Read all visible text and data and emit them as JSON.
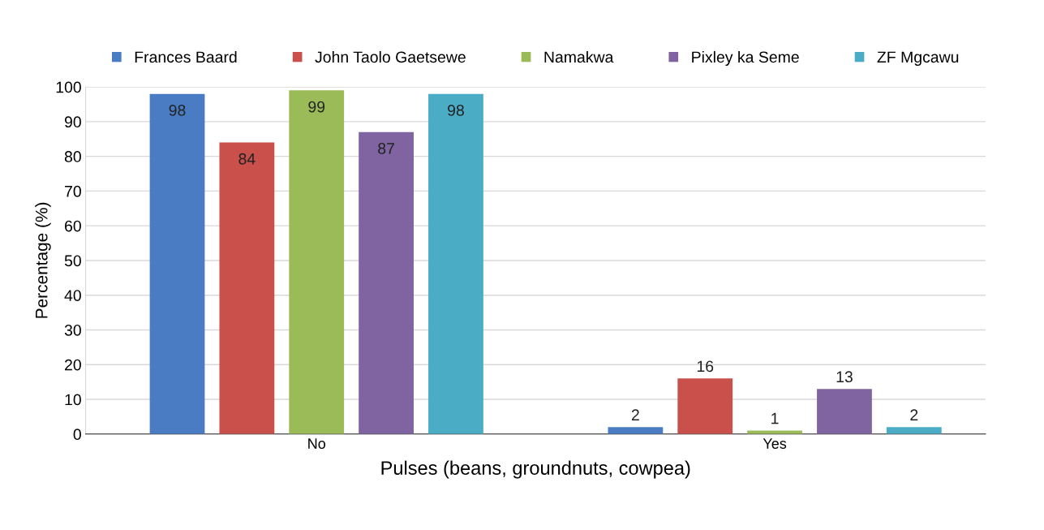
{
  "chart_data": {
    "type": "bar",
    "xlabel": "Pulses (beans, groundnuts, cowpea)",
    "ylabel": "Percentage (%)",
    "categories": [
      "No",
      "Yes"
    ],
    "series": [
      {
        "name": "Frances Baard",
        "color": "#4a7cc4",
        "values": [
          98,
          2
        ]
      },
      {
        "name": "John Taolo Gaetsewe",
        "color": "#c9504b",
        "values": [
          84,
          16
        ]
      },
      {
        "name": "Namakwa",
        "color": "#9bbb59",
        "values": [
          99,
          1
        ]
      },
      {
        "name": "Pixley ka Seme",
        "color": "#8064a2",
        "values": [
          87,
          13
        ]
      },
      {
        "name": "ZF Mgcawu",
        "color": "#4bacc6",
        "values": [
          98,
          2
        ]
      }
    ],
    "ylim": [
      0,
      100
    ],
    "yticks": [
      0,
      10,
      20,
      30,
      40,
      50,
      60,
      70,
      80,
      90,
      100
    ],
    "grid": "y",
    "legend": "top",
    "data_labels": true
  }
}
